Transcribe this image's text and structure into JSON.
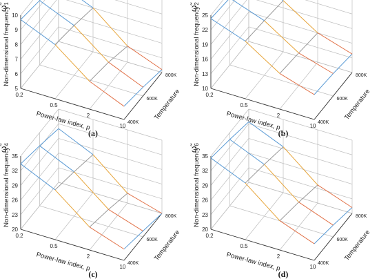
{
  "common": {
    "ylabel": "Non-dimensional frequency",
    "xlabel": "Power-law index, p",
    "zlabel": "Temperature",
    "x_ticks": [
      "0.2",
      "0.5",
      "2",
      "10"
    ],
    "z_ticks": [
      "400K",
      "600K",
      "800K"
    ]
  },
  "chart_data": [
    {
      "type": "surface-3d",
      "caption": "(a)",
      "symbol": "ω̃",
      "subscript": "1",
      "y_ticks": [
        "5",
        "6",
        "7",
        "8",
        "9",
        "10"
      ],
      "ylim": [
        5,
        10
      ],
      "categories": [
        "0.2",
        "0.5",
        "2",
        "10"
      ],
      "series": [
        {
          "name": "400K",
          "values": [
            9.7,
            8.7,
            6.9,
            5.9
          ]
        },
        {
          "name": "600K",
          "values": [
            9.4,
            8.4,
            6.6,
            5.6
          ]
        },
        {
          "name": "800K",
          "values": [
            9.0,
            8.0,
            6.1,
            5.2
          ]
        }
      ]
    },
    {
      "type": "surface-3d",
      "caption": "(b)",
      "symbol": "ω̃",
      "subscript": "2",
      "y_ticks": [
        "10",
        "13",
        "16",
        "19",
        "22",
        "25"
      ],
      "ylim": [
        10,
        25
      ],
      "categories": [
        "0.2",
        "0.5",
        "2",
        "10"
      ],
      "series": [
        {
          "name": "400K",
          "values": [
            24.3,
            21.8,
            17.3,
            15.1
          ]
        },
        {
          "name": "600K",
          "values": [
            23.7,
            21.2,
            16.7,
            14.6
          ]
        },
        {
          "name": "800K",
          "values": [
            23.0,
            20.5,
            16.0,
            13.8
          ]
        }
      ]
    },
    {
      "type": "surface-3d",
      "caption": "(c)",
      "symbol": "ω̃",
      "subscript": "4",
      "y_ticks": [
        "20",
        "23",
        "26",
        "29",
        "32",
        "35"
      ],
      "ylim": [
        20,
        35
      ],
      "categories": [
        "0.2",
        "0.5",
        "2",
        "10"
      ],
      "series": [
        {
          "name": "400K",
          "values": [
            33.4,
            30.2,
            24.7,
            22.3
          ]
        },
        {
          "name": "600K",
          "values": [
            32.3,
            29.1,
            23.5,
            21.2
          ]
        },
        {
          "name": "800K",
          "values": [
            31.0,
            27.8,
            22.0,
            20.0
          ]
        }
      ]
    },
    {
      "type": "surface-3d",
      "caption": "(d)",
      "symbol": "ω̃",
      "subscript": "6",
      "y_ticks": [
        "20",
        "23",
        "26",
        "29",
        "32",
        "35"
      ],
      "ylim": [
        20,
        35
      ],
      "categories": [
        "0.2",
        "0.5",
        "2",
        "10"
      ],
      "series": [
        {
          "name": "400K",
          "values": [
            34.6,
            31.6,
            26.0,
            23.4
          ]
        },
        {
          "name": "600K",
          "values": [
            33.6,
            30.6,
            25.0,
            22.4
          ]
        },
        {
          "name": "800K",
          "values": [
            32.4,
            29.4,
            23.7,
            21.2
          ]
        }
      ]
    }
  ],
  "colors": {
    "line_along_p": "#e7a53a",
    "line_along_p_low": "#e2734a",
    "line_along_T": "#5b9bd5",
    "line_along_T_mid": "#9a9a9a",
    "grid": "#bdbdbd",
    "axis": "#333333"
  }
}
